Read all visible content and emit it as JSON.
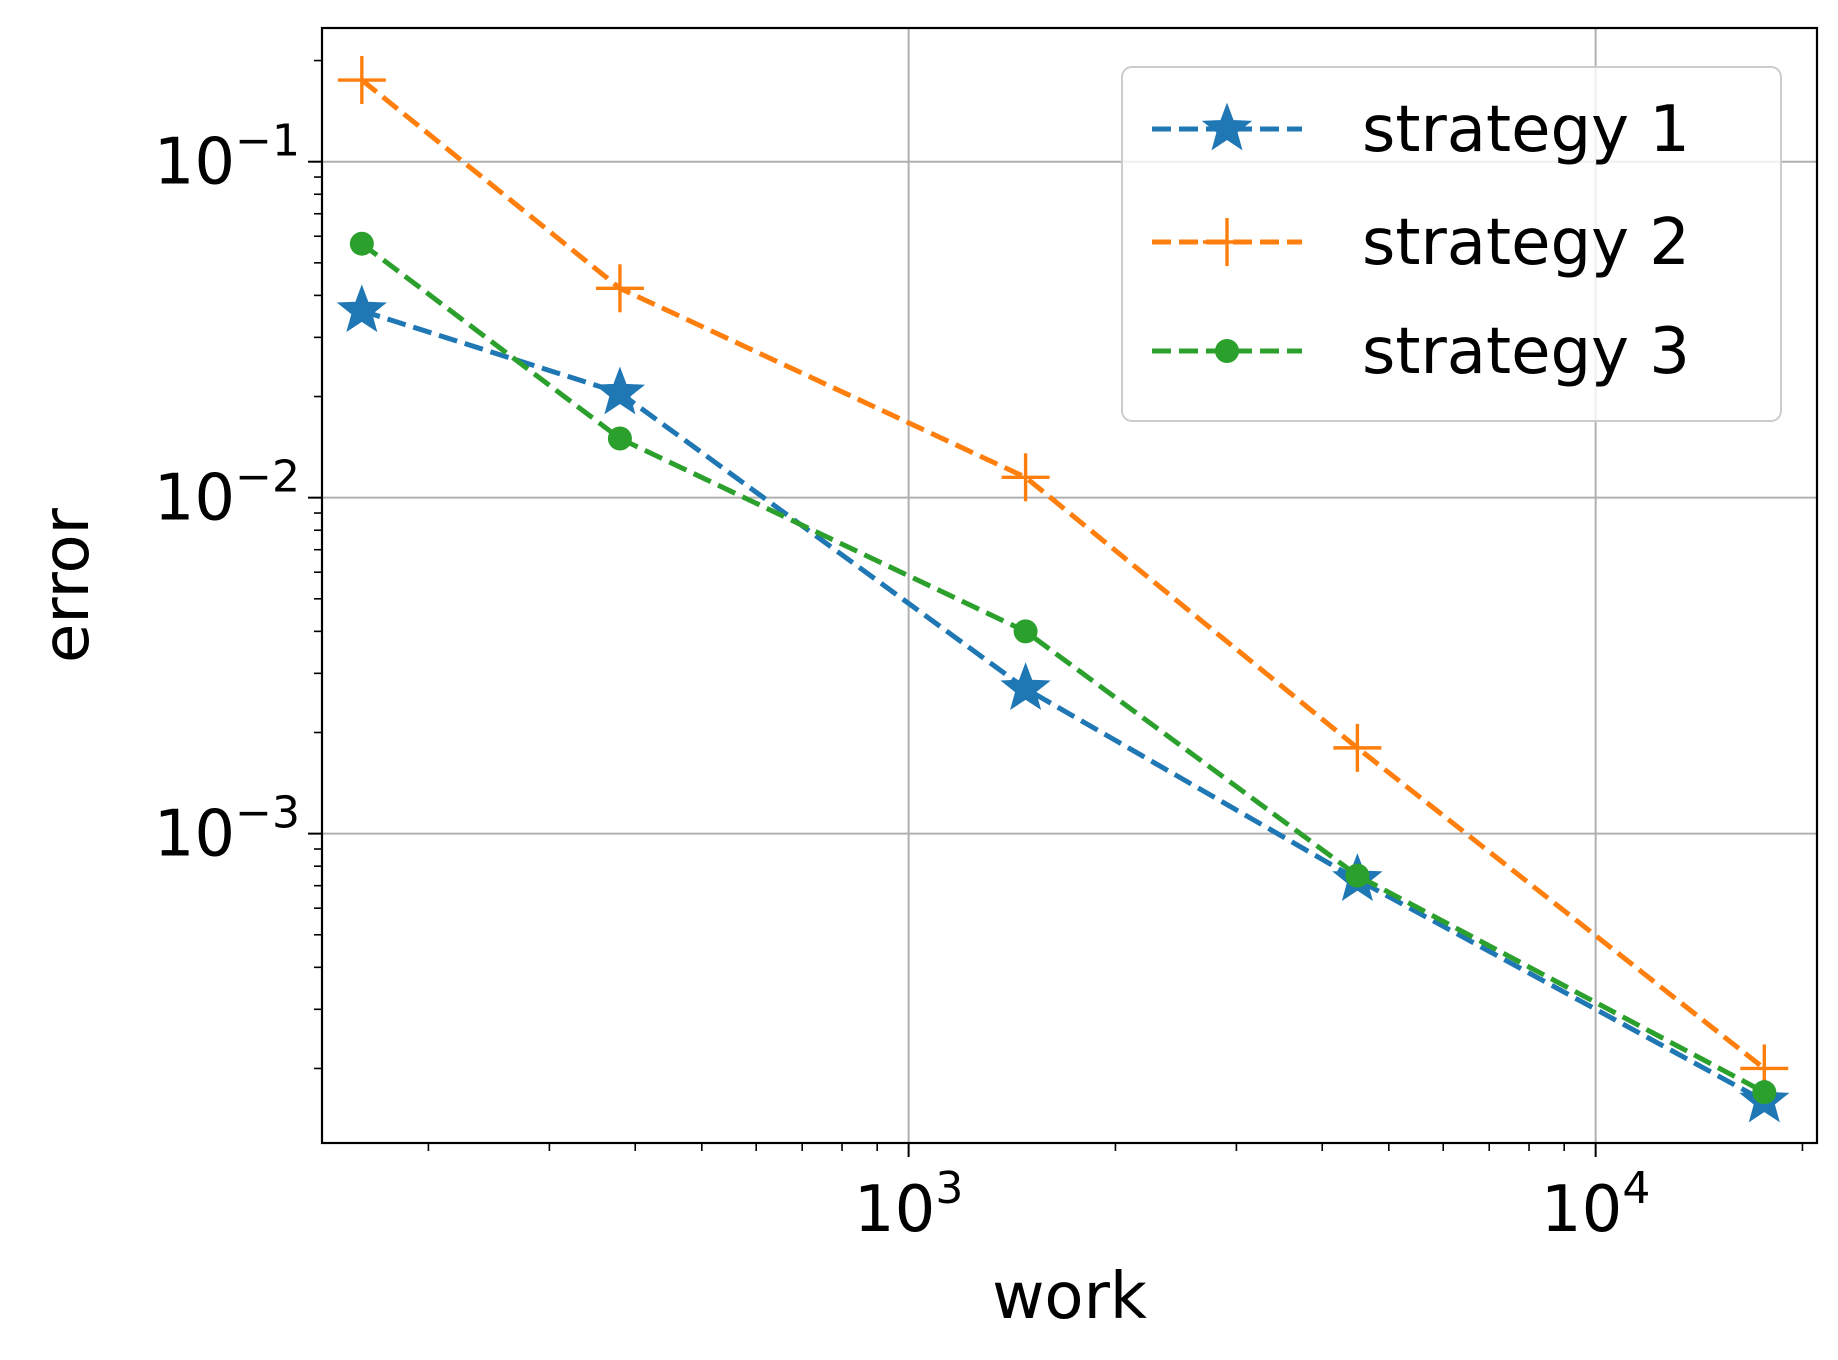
{
  "chart_data": {
    "type": "line",
    "xlabel": "work",
    "ylabel": "error",
    "xscale": "log",
    "yscale": "log",
    "xlim": [
      140,
      21000
    ],
    "ylim": [
      0.00012,
      0.25
    ],
    "grid": true,
    "legend_position": "top-right",
    "x_ticks": [
      {
        "value": 1000,
        "base": "10",
        "exp": "3"
      },
      {
        "value": 10000,
        "base": "10",
        "exp": "4"
      }
    ],
    "y_ticks": [
      {
        "value": 0.1,
        "base": "10",
        "exp": "−1"
      },
      {
        "value": 0.01,
        "base": "10",
        "exp": "−2"
      },
      {
        "value": 0.001,
        "base": "10",
        "exp": "−3"
      }
    ],
    "series": [
      {
        "name": "strategy 1",
        "color": "#1f77b4",
        "marker": "star",
        "x": [
          160,
          380,
          1480,
          4500,
          17600
        ],
        "y": [
          0.036,
          0.0205,
          0.0027,
          0.00073,
          0.00016
        ]
      },
      {
        "name": "strategy 2",
        "color": "#ff7f0e",
        "marker": "plus",
        "x": [
          160,
          380,
          1480,
          4500,
          17600
        ],
        "y": [
          0.175,
          0.042,
          0.0115,
          0.0018,
          0.0002
        ]
      },
      {
        "name": "strategy 3",
        "color": "#2ca02c",
        "marker": "circle",
        "x": [
          160,
          380,
          1480,
          4500,
          17600
        ],
        "y": [
          0.057,
          0.015,
          0.004,
          0.00075,
          0.00017
        ]
      }
    ]
  }
}
